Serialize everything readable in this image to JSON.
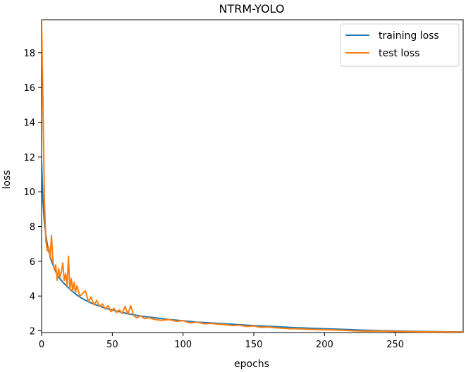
{
  "chart_data": {
    "type": "line",
    "title": "NTRM-YOLO",
    "xlabel": "epochs",
    "ylabel": "loss",
    "xlim": [
      0,
      298
    ],
    "ylim": [
      1.9,
      19.9
    ],
    "xticks": [
      0,
      50,
      100,
      150,
      200,
      250
    ],
    "yticks": [
      2,
      4,
      6,
      8,
      10,
      12,
      14,
      16,
      18
    ],
    "grid": false,
    "legend_position": "top-right",
    "series": [
      {
        "name": "training loss",
        "color": "#1f77b4",
        "x": [
          0,
          1,
          2,
          3,
          4,
          5,
          6,
          7,
          8,
          10,
          12,
          15,
          18,
          20,
          25,
          30,
          35,
          40,
          45,
          50,
          60,
          70,
          80,
          90,
          100,
          110,
          120,
          130,
          140,
          150,
          160,
          170,
          180,
          190,
          200,
          210,
          220,
          230,
          240,
          250,
          260,
          270,
          280,
          290,
          298
        ],
        "y": [
          11.8,
          9.4,
          8.2,
          7.5,
          7.0,
          6.6,
          6.3,
          6.0,
          5.8,
          5.4,
          5.1,
          4.8,
          4.55,
          4.4,
          4.05,
          3.8,
          3.6,
          3.45,
          3.3,
          3.2,
          3.0,
          2.85,
          2.75,
          2.65,
          2.58,
          2.5,
          2.45,
          2.4,
          2.35,
          2.3,
          2.26,
          2.22,
          2.18,
          2.15,
          2.12,
          2.09,
          2.06,
          2.03,
          2.01,
          1.99,
          1.97,
          1.96,
          1.95,
          1.94,
          1.94
        ]
      },
      {
        "name": "test loss",
        "color": "#ff7f0e",
        "x": [
          0,
          1,
          2,
          3,
          4,
          5,
          6,
          7,
          8,
          9,
          10,
          11,
          12,
          13,
          14,
          15,
          16,
          17,
          18,
          19,
          20,
          21,
          22,
          23,
          24,
          25,
          27,
          29,
          31,
          33,
          35,
          37,
          39,
          41,
          43,
          45,
          47,
          49,
          51,
          53,
          55,
          57,
          59,
          61,
          63,
          65,
          67,
          70,
          73,
          76,
          80,
          85,
          90,
          95,
          100,
          105,
          110,
          115,
          120,
          125,
          130,
          135,
          140,
          145,
          150,
          155,
          160,
          165,
          170,
          175,
          180,
          190,
          200,
          210,
          220,
          230,
          240,
          250,
          260,
          270,
          280,
          290,
          298
        ],
        "y": [
          19.9,
          15.0,
          9.5,
          7.2,
          6.6,
          6.8,
          6.2,
          7.5,
          6.0,
          5.5,
          5.8,
          4.9,
          5.6,
          5.1,
          5.4,
          5.9,
          4.9,
          5.3,
          4.6,
          6.3,
          4.4,
          5.0,
          4.3,
          4.8,
          4.2,
          4.6,
          4.0,
          4.15,
          4.3,
          3.7,
          3.95,
          3.5,
          3.75,
          3.4,
          3.55,
          3.25,
          3.45,
          3.1,
          3.3,
          3.05,
          3.2,
          3.0,
          3.4,
          2.95,
          3.45,
          2.9,
          2.75,
          2.85,
          2.7,
          2.75,
          2.65,
          2.6,
          2.65,
          2.55,
          2.58,
          2.45,
          2.5,
          2.4,
          2.42,
          2.38,
          2.35,
          2.3,
          2.32,
          2.25,
          2.28,
          2.2,
          2.22,
          2.18,
          2.15,
          2.12,
          2.12,
          2.08,
          2.06,
          2.04,
          2.0,
          1.98,
          1.99,
          1.96,
          1.95,
          1.94,
          1.94,
          1.93,
          1.93
        ]
      }
    ]
  }
}
